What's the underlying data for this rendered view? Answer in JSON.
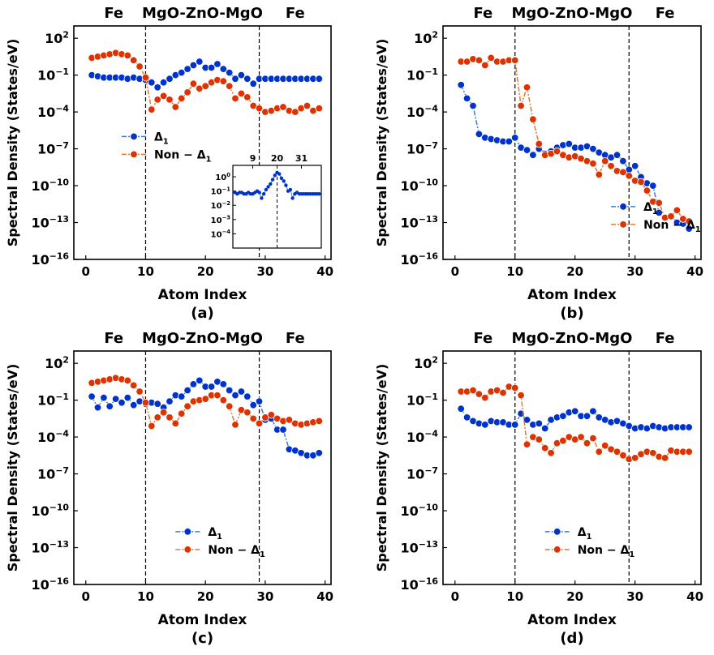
{
  "figure": {
    "layer_labels": [
      "Fe",
      "MgO-ZnO-MgO",
      "Fe"
    ],
    "ylabel": "Spectral Density (States/eV)",
    "xlabel": "Atom Index"
  },
  "colors": {
    "delta": "#0033cc",
    "delta_line": "#3a7fd0",
    "nondelta": "#dd3300",
    "nondelta_line": "#e07a3a"
  },
  "chart_data": [
    {
      "type": "line",
      "panel": "(a)",
      "log_y": true,
      "xlim": [
        -2,
        41
      ],
      "ylim_exp": [
        -16,
        3
      ],
      "xticks": [
        0,
        10,
        20,
        30,
        40
      ],
      "yticks": [
        {
          "exp": 2,
          "label": "10^2"
        },
        {
          "exp": -1,
          "label": "10^-1"
        },
        {
          "exp": -4,
          "label": "10^-4"
        },
        {
          "exp": -7,
          "label": "10^-7"
        },
        {
          "exp": -10,
          "label": "10^-10"
        },
        {
          "exp": -13,
          "label": "10^-13"
        },
        {
          "exp": -16,
          "label": "10^-16"
        }
      ],
      "interfaces": [
        10,
        29
      ],
      "legend_position": "center-left",
      "series": [
        {
          "name": "Δ1",
          "x_start": 1,
          "log10_values": [
            -1.0,
            -1.1,
            -1.2,
            -1.2,
            -1.2,
            -1.2,
            -1.3,
            -1.2,
            -1.3,
            -1.4,
            -1.6,
            -2.0,
            -1.6,
            -1.3,
            -1.0,
            -0.8,
            -0.5,
            -0.2,
            0.1,
            -0.4,
            -0.4,
            -0.1,
            -0.5,
            -0.8,
            -1.3,
            -1.0,
            -1.3,
            -1.7,
            -1.3,
            -1.3,
            -1.3,
            -1.3,
            -1.3,
            -1.3,
            -1.3,
            -1.3,
            -1.3,
            -1.3,
            -1.3
          ]
        },
        {
          "name": "Non − Δ1",
          "x_start": 1,
          "log10_values": [
            0.4,
            0.5,
            0.6,
            0.7,
            0.8,
            0.7,
            0.6,
            0.2,
            -0.3,
            -1.2,
            -3.8,
            -3.0,
            -2.7,
            -3.0,
            -3.6,
            -2.9,
            -2.4,
            -1.7,
            -2.1,
            -1.9,
            -1.6,
            -1.4,
            -1.5,
            -1.9,
            -2.9,
            -2.5,
            -2.8,
            -3.5,
            -3.7,
            -4.0,
            -3.9,
            -3.7,
            -3.6,
            -3.9,
            -4.0,
            -3.7,
            -3.5,
            -3.9,
            -3.7
          ]
        }
      ],
      "inset": {
        "xticks": [
          9,
          20,
          31
        ],
        "yticks": [
          {
            "exp": 0,
            "label": "10^0"
          },
          {
            "exp": -1,
            "label": "10^-1"
          },
          {
            "exp": -2,
            "label": "10^-2"
          },
          {
            "exp": -3,
            "label": "10^-3"
          },
          {
            "exp": -4,
            "label": "10^-4"
          }
        ],
        "interface": 20,
        "x_start": 1,
        "log10_values": [
          -1.1,
          -1.2,
          -1.1,
          -1.1,
          -1.2,
          -1.2,
          -1.1,
          -1.2,
          -1.2,
          -1.1,
          -1.0,
          -1.1,
          -1.5,
          -1.2,
          -0.9,
          -0.7,
          -0.5,
          -0.2,
          0.1,
          0.3,
          0.2,
          -0.1,
          -0.3,
          -0.6,
          -1.0,
          -0.9,
          -1.5,
          -1.2,
          -1.1,
          -1.2,
          -1.2,
          -1.2,
          -1.2,
          -1.2,
          -1.2,
          -1.2,
          -1.2,
          -1.2,
          -1.2
        ]
      }
    },
    {
      "type": "line",
      "panel": "(b)",
      "log_y": true,
      "xlim": [
        -2,
        41
      ],
      "ylim_exp": [
        -16,
        3
      ],
      "xticks": [
        0,
        10,
        20,
        30,
        40
      ],
      "yticks": [
        {
          "exp": 2,
          "label": "10^2"
        },
        {
          "exp": -1,
          "label": "10^-1"
        },
        {
          "exp": -4,
          "label": "10^-4"
        },
        {
          "exp": -7,
          "label": "10^-7"
        },
        {
          "exp": -10,
          "label": "10^-10"
        },
        {
          "exp": -13,
          "label": "10^-13"
        },
        {
          "exp": -16,
          "label": "10^-16"
        }
      ],
      "interfaces": [
        10,
        29
      ],
      "legend_position": "bottom-right",
      "series": [
        {
          "name": "Δ1",
          "x_start": 1,
          "log10_values": [
            -1.8,
            -2.9,
            -3.5,
            -5.8,
            -6.1,
            -6.2,
            -6.3,
            -6.4,
            -6.4,
            -6.1,
            -6.9,
            -7.1,
            -7.5,
            -7.0,
            -7.4,
            -7.2,
            -6.9,
            -6.7,
            -6.6,
            -6.9,
            -6.9,
            -6.8,
            -7.0,
            -7.3,
            -7.5,
            -7.7,
            -7.5,
            -8.0,
            -8.7,
            -8.4,
            -9.3,
            -9.8,
            -10.0,
            -12.2,
            -12.6,
            -12.5,
            -13.0,
            -13.1,
            -13.5
          ]
        },
        {
          "name": "Non − Δ1",
          "x_start": 1,
          "log10_values": [
            0.1,
            0.1,
            0.3,
            0.2,
            -0.2,
            0.4,
            0.1,
            0.1,
            0.2,
            0.2,
            -3.5,
            -2.0,
            -4.6,
            -6.6,
            -7.5,
            -7.4,
            -7.2,
            -7.5,
            -7.7,
            -7.6,
            -7.8,
            -8.0,
            -8.2,
            -9.1,
            -8.0,
            -8.4,
            -8.8,
            -8.9,
            -9.2,
            -9.6,
            -9.7,
            -10.4,
            -11.3,
            -11.4,
            -12.6,
            -12.5,
            -12.0,
            -12.7,
            -12.9
          ]
        }
      ]
    },
    {
      "type": "line",
      "panel": "(c)",
      "log_y": true,
      "xlim": [
        -2,
        41
      ],
      "ylim_exp": [
        -16,
        3
      ],
      "xticks": [
        0,
        10,
        20,
        30,
        40
      ],
      "yticks": [
        {
          "exp": 2,
          "label": "10^2"
        },
        {
          "exp": -1,
          "label": "10^-1"
        },
        {
          "exp": -4,
          "label": "10^-4"
        },
        {
          "exp": -7,
          "label": "10^-7"
        },
        {
          "exp": -10,
          "label": "10^-10"
        },
        {
          "exp": -13,
          "label": "10^-13"
        },
        {
          "exp": -16,
          "label": "10^-16"
        }
      ],
      "interfaces": [
        10,
        29
      ],
      "legend_position": "bottom-center",
      "series": [
        {
          "name": "Δ1",
          "x_start": 1,
          "log10_values": [
            -0.7,
            -1.6,
            -0.8,
            -1.5,
            -0.9,
            -1.2,
            -0.8,
            -1.4,
            -1.1,
            -1.3,
            -1.2,
            -1.3,
            -1.6,
            -1.1,
            -0.6,
            -0.7,
            -0.2,
            0.3,
            0.6,
            0.1,
            0.1,
            0.5,
            0.3,
            -0.2,
            -0.6,
            -0.3,
            -0.7,
            -1.4,
            -1.1,
            -2.6,
            -2.5,
            -3.4,
            -3.4,
            -5.0,
            -5.1,
            -5.3,
            -5.5,
            -5.5,
            -5.3
          ]
        },
        {
          "name": "Non − Δ1",
          "x_start": 1,
          "log10_values": [
            0.4,
            0.5,
            0.6,
            0.7,
            0.8,
            0.7,
            0.6,
            0.2,
            -0.3,
            -1.2,
            -3.1,
            -2.4,
            -2.0,
            -2.4,
            -2.9,
            -2.1,
            -1.5,
            -1.1,
            -1.0,
            -0.9,
            -0.6,
            -0.6,
            -1.0,
            -1.5,
            -3.0,
            -1.8,
            -2.0,
            -2.5,
            -2.9,
            -2.4,
            -2.2,
            -2.5,
            -2.7,
            -2.6,
            -2.9,
            -3.0,
            -2.9,
            -2.8,
            -2.7
          ]
        }
      ]
    },
    {
      "type": "line",
      "panel": "(d)",
      "log_y": true,
      "xlim": [
        -2,
        41
      ],
      "ylim_exp": [
        -16,
        3
      ],
      "xticks": [
        0,
        10,
        20,
        30,
        40
      ],
      "yticks": [
        {
          "exp": 2,
          "label": "10^2"
        },
        {
          "exp": -1,
          "label": "10^-1"
        },
        {
          "exp": -4,
          "label": "10^-4"
        },
        {
          "exp": -7,
          "label": "10^-7"
        },
        {
          "exp": -10,
          "label": "10^-10"
        },
        {
          "exp": -13,
          "label": "10^-13"
        },
        {
          "exp": -16,
          "label": "10^-16"
        }
      ],
      "interfaces": [
        10,
        29
      ],
      "legend_position": "bottom-center",
      "series": [
        {
          "name": "Δ1",
          "x_start": 1,
          "log10_values": [
            -1.7,
            -2.4,
            -2.7,
            -2.9,
            -3.0,
            -2.7,
            -2.8,
            -2.8,
            -3.0,
            -3.0,
            -2.1,
            -2.6,
            -3.0,
            -2.9,
            -3.3,
            -2.6,
            -2.4,
            -2.3,
            -2.0,
            -1.9,
            -2.3,
            -2.3,
            -1.9,
            -2.4,
            -2.6,
            -2.8,
            -2.7,
            -2.9,
            -3.1,
            -3.3,
            -3.2,
            -3.3,
            -3.1,
            -3.2,
            -3.3,
            -3.2,
            -3.2,
            -3.2,
            -3.2
          ]
        },
        {
          "name": "Non − Δ1",
          "x_start": 1,
          "log10_values": [
            -0.3,
            -0.3,
            -0.2,
            -0.5,
            -0.8,
            -0.3,
            -0.2,
            -0.4,
            0.1,
            0.0,
            -0.6,
            -4.6,
            -4.0,
            -4.2,
            -4.9,
            -5.3,
            -4.5,
            -4.3,
            -4.0,
            -4.2,
            -4.0,
            -4.5,
            -4.1,
            -5.2,
            -4.7,
            -5.0,
            -5.2,
            -5.5,
            -5.8,
            -5.7,
            -5.4,
            -5.2,
            -5.3,
            -5.6,
            -5.7,
            -5.1,
            -5.2,
            -5.2,
            -5.2
          ]
        }
      ]
    }
  ],
  "legend": [
    "Δ1",
    "Non − Δ1"
  ]
}
